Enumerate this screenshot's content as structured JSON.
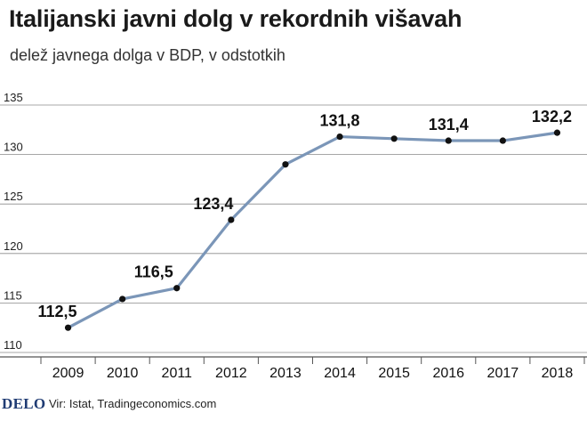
{
  "header": {
    "title": "Italijanski javni dolg v rekordnih višavah",
    "subtitle": "delež javnega dolga v BDP, v odstotkih"
  },
  "footer": {
    "brand": "DELO",
    "source": "Vir: Istat, Tradingeconomics.com"
  },
  "chart_data": {
    "type": "line",
    "x": [
      "2009",
      "2010",
      "2011",
      "2012",
      "2013",
      "2014",
      "2015",
      "2016",
      "2017",
      "2018"
    ],
    "series": [
      {
        "values": [
          112.5,
          115.4,
          116.5,
          123.4,
          129.0,
          131.8,
          131.6,
          131.4,
          131.4,
          132.2
        ]
      }
    ],
    "data_labels": [
      {
        "index": 0,
        "text": "112,5"
      },
      {
        "index": 2,
        "text": "116,5"
      },
      {
        "index": 3,
        "text": "123,4"
      },
      {
        "index": 5,
        "text": "131,8"
      },
      {
        "index": 7,
        "text": "131,4"
      },
      {
        "index": 9,
        "text": "132,2"
      }
    ],
    "yticks": [
      110,
      115,
      120,
      125,
      130,
      135
    ],
    "ylim": [
      110,
      135
    ],
    "grid": true,
    "line_color": "#7b96b8",
    "marker_color": "#111111"
  }
}
